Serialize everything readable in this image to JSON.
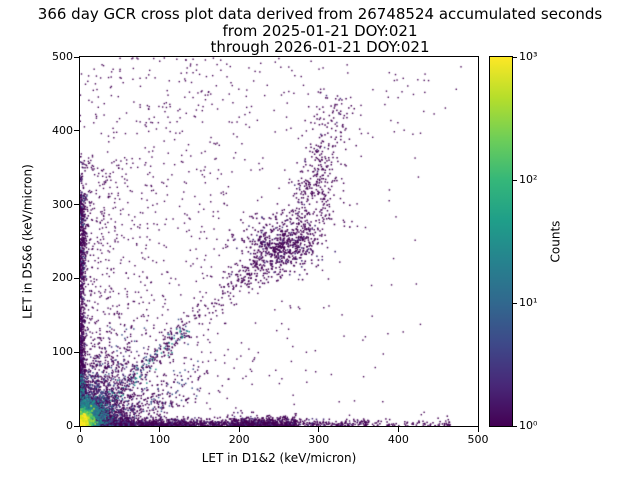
{
  "chart_data": {
    "type": "scatter",
    "title": "366 day GCR cross plot data derived from 26748524 accumulated seconds",
    "subtitle_from": "from 2025-01-21 DOY:021",
    "subtitle_through": "through 2026-01-21 DOY:021",
    "xlabel": "LET in D1&2 (keV/micron)",
    "ylabel": "LET in D5&6 (keV/micron)",
    "xlim": [
      0,
      500
    ],
    "ylim": [
      0,
      500
    ],
    "xticks": [
      0,
      100,
      200,
      300,
      400,
      500
    ],
    "yticks": [
      0,
      100,
      200,
      300,
      400,
      500
    ],
    "grid": false,
    "background_color": "#ffffff",
    "point_color_min": "#440154",
    "point_color_max": "#fde725",
    "colorbar": {
      "label": "Counts",
      "scale": "log",
      "min_decade": 0,
      "max_decade": 3,
      "tick_labels": [
        "10⁰",
        "10¹",
        "10²",
        "10³"
      ],
      "colormap": "viridis",
      "palette": [
        "#440154",
        "#482878",
        "#3e4989",
        "#31688e",
        "#26828e",
        "#1f9e89",
        "#35b779",
        "#6ece58",
        "#b5de2b",
        "#fde725"
      ]
    },
    "density_clusters": [
      {
        "name": "sparse-left",
        "shape": "rect",
        "n": 520,
        "x0": 0,
        "x1": 175,
        "y0": 0,
        "y1": 500,
        "size": 1.4,
        "colors": [
          [
            "#440154",
            1
          ]
        ]
      },
      {
        "name": "sparse-right",
        "shape": "rect",
        "n": 240,
        "x0": 175,
        "x1": 460,
        "xexp": 110,
        "y0": 0,
        "y1": 500,
        "size": 1.4,
        "colors": [
          [
            "#440154",
            1
          ]
        ]
      },
      {
        "name": "sparse-top",
        "shape": "rect",
        "n": 90,
        "x0": 30,
        "x1": 480,
        "y0": 390,
        "y1": 500,
        "size": 1.4,
        "colors": [
          [
            "#440154",
            1
          ]
        ]
      },
      {
        "name": "left-mid-haze",
        "shape": "rect",
        "n": 380,
        "x0": 0,
        "x1": 95,
        "xexp": 38,
        "y0": 60,
        "y1": 365,
        "size": 1.4,
        "colors": [
          [
            "#440154",
            1
          ]
        ]
      },
      {
        "name": "bottom-band",
        "shape": "hexp",
        "n": 2000,
        "x0": 0,
        "scale": 120,
        "xmax": 360,
        "ybase": 0,
        "sy": 4.5,
        "size": 1.5,
        "colors": [
          [
            "#440154",
            0.8
          ],
          [
            "#472d7b",
            0.2
          ]
        ]
      },
      {
        "name": "bottom-bump",
        "shape": "hband",
        "n": 500,
        "x0": 190,
        "x1": 272,
        "ybase": 0,
        "sy": 6,
        "size": 1.5,
        "colors": [
          [
            "#440154",
            0.85
          ],
          [
            "#472d7b",
            0.15
          ]
        ]
      },
      {
        "name": "bottom-tail",
        "shape": "hband",
        "n": 130,
        "x0": 300,
        "x1": 465,
        "ybase": 0,
        "sy": 4,
        "size": 1.5,
        "colors": [
          [
            "#440154",
            1
          ]
        ]
      },
      {
        "name": "left-band",
        "shape": "vexp",
        "n": 1000,
        "y0": 0,
        "scale": 130,
        "ymax": 360,
        "xbase": 0,
        "sx": 3.5,
        "size": 1.5,
        "colors": [
          [
            "#440154",
            0.8
          ],
          [
            "#472d7b",
            0.2
          ]
        ]
      },
      {
        "name": "left-band-dense",
        "shape": "vband",
        "n": 260,
        "y0": 200,
        "y1": 315,
        "xbase": 0,
        "sx": 4.5,
        "size": 1.5,
        "colors": [
          [
            "#440154",
            0.85
          ],
          [
            "#3b528b",
            0.15
          ]
        ]
      },
      {
        "name": "ray-shallow1",
        "shape": "line",
        "n": 200,
        "x0": 0,
        "y0": 0,
        "x1": 160,
        "y1": 78,
        "jitter": 7,
        "pow": 1.8,
        "size": 1.5,
        "colors": [
          [
            "#440154",
            0.7
          ],
          [
            "#3b528b",
            0.3
          ]
        ]
      },
      {
        "name": "ray-shallow2",
        "shape": "line",
        "n": 170,
        "x0": 0,
        "y0": 0,
        "x1": 150,
        "y1": 42,
        "jitter": 6,
        "pow": 1.8,
        "size": 1.5,
        "colors": [
          [
            "#440154",
            0.7
          ],
          [
            "#3b528b",
            0.3
          ]
        ]
      },
      {
        "name": "ray-steep1",
        "shape": "line",
        "n": 150,
        "x0": 0,
        "y0": 0,
        "x1": 75,
        "y1": 150,
        "jitter": 7,
        "pow": 1.8,
        "size": 1.5,
        "colors": [
          [
            "#440154",
            0.7
          ],
          [
            "#3b528b",
            0.3
          ]
        ]
      },
      {
        "name": "ray-steep2",
        "shape": "line",
        "n": 120,
        "x0": 0,
        "y0": 0,
        "x1": 40,
        "y1": 155,
        "jitter": 6,
        "pow": 1.8,
        "size": 1.5,
        "colors": [
          [
            "#440154",
            0.75
          ],
          [
            "#3b528b",
            0.25
          ]
        ]
      },
      {
        "name": "diag-ext",
        "shape": "line",
        "n": 130,
        "x0": 100,
        "y0": 100,
        "x1": 215,
        "y1": 212,
        "jitter": 9,
        "pow": 1,
        "size": 1.5,
        "colors": [
          [
            "#440154",
            1
          ]
        ]
      },
      {
        "name": "mid-diag-cluster",
        "shape": "gauss",
        "n": 430,
        "cx": 248,
        "cy": 243,
        "sx": 26,
        "sy": 21,
        "size": 1.6,
        "colors": [
          [
            "#440154",
            0.85
          ],
          [
            "#472d7b",
            0.15
          ]
        ]
      },
      {
        "name": "mid-diag-line",
        "shape": "line",
        "n": 200,
        "x0": 200,
        "y0": 196,
        "x1": 292,
        "y1": 268,
        "jitter": 11,
        "pow": 1,
        "size": 1.5,
        "colors": [
          [
            "#440154",
            1
          ]
        ]
      },
      {
        "name": "upper-plume",
        "shape": "line",
        "n": 330,
        "x0": 258,
        "y0": 235,
        "x1": 330,
        "y1": 445,
        "jitter": 13,
        "pow": 1.3,
        "size": 1.5,
        "colors": [
          [
            "#440154",
            0.9
          ],
          [
            "#472d7b",
            0.1
          ]
        ]
      },
      {
        "name": "plume-knot",
        "shape": "gauss",
        "n": 150,
        "cx": 302,
        "cy": 315,
        "sx": 16,
        "sy": 38,
        "size": 1.5,
        "colors": [
          [
            "#440154",
            1
          ]
        ]
      },
      {
        "name": "core-halo",
        "shape": "gauss",
        "n": 1300,
        "cx": 20,
        "cy": 22,
        "sx": 38,
        "sy": 40,
        "size": 1.5,
        "colors": [
          [
            "#440154",
            0.85
          ],
          [
            "#46327e",
            0.15
          ]
        ]
      },
      {
        "name": "core-blue",
        "shape": "gauss",
        "n": 1500,
        "cx": 12,
        "cy": 15,
        "sx": 20,
        "sy": 22,
        "size": 1.5,
        "colors": [
          [
            "#3b528b",
            0.4
          ],
          [
            "#472d7b",
            0.3
          ],
          [
            "#440154",
            0.3
          ]
        ]
      },
      {
        "name": "diag-streak",
        "shape": "line",
        "n": 520,
        "x0": 0,
        "y0": 0,
        "x1": 135,
        "y1": 135,
        "jitter": 6,
        "pow": 2,
        "size": 1.5,
        "colors": [
          [
            "#440154",
            0.5
          ],
          [
            "#3b528b",
            0.3
          ],
          [
            "#21918c",
            0.2
          ]
        ]
      },
      {
        "name": "left-bottom-teal",
        "shape": "vband",
        "n": 300,
        "y0": 0,
        "y1": 70,
        "xbase": 0,
        "sx": 2.5,
        "size": 1.5,
        "colors": [
          [
            "#21918c",
            0.4
          ],
          [
            "#3b528b",
            0.4
          ],
          [
            "#440154",
            0.2
          ]
        ]
      },
      {
        "name": "core-teal",
        "shape": "gauss",
        "n": 1200,
        "cx": 8,
        "cy": 11,
        "sx": 10,
        "sy": 12,
        "size": 1.6,
        "colors": [
          [
            "#21918c",
            0.5
          ],
          [
            "#2c728e",
            0.5
          ]
        ]
      },
      {
        "name": "core-green",
        "shape": "gauss",
        "n": 900,
        "cx": 5,
        "cy": 8,
        "sx": 5,
        "sy": 6,
        "size": 1.8,
        "colors": [
          [
            "#a0da39",
            0.35
          ],
          [
            "#5ec962",
            0.35
          ],
          [
            "#35b779",
            0.3
          ]
        ]
      },
      {
        "name": "core-hot",
        "shape": "gauss",
        "n": 600,
        "cx": 3,
        "cy": 5,
        "sx": 2.5,
        "sy": 3.5,
        "size": 2,
        "colors": [
          [
            "#fde725",
            0.6
          ],
          [
            "#d2e21b",
            0.4
          ]
        ]
      }
    ]
  }
}
